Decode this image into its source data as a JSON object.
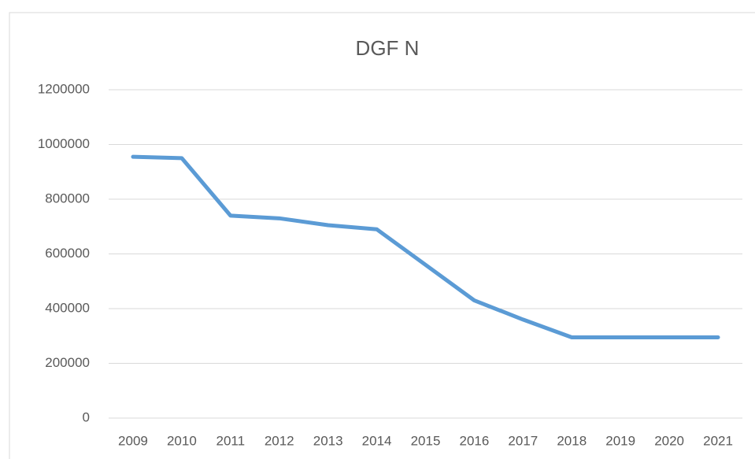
{
  "chart_data": {
    "type": "line",
    "title": "DGF N",
    "categories": [
      "2009",
      "2010",
      "2011",
      "2012",
      "2013",
      "2014",
      "2015",
      "2016",
      "2017",
      "2018",
      "2019",
      "2020",
      "2021"
    ],
    "series": [
      {
        "name": "DGF N",
        "color": "#5b9bd5",
        "values": [
          955000,
          950000,
          740000,
          730000,
          705000,
          690000,
          560000,
          430000,
          360000,
          295000,
          295000,
          295000,
          295000
        ]
      }
    ],
    "ylim": [
      0,
      1200000
    ],
    "yticks": [
      0,
      200000,
      400000,
      600000,
      800000,
      1000000,
      1200000
    ],
    "grid": true,
    "legend": false
  }
}
